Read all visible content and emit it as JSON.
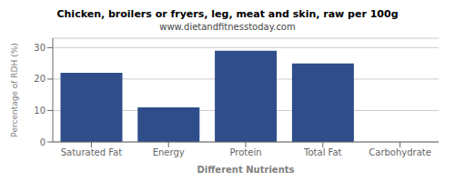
{
  "chart_data": {
    "type": "bar",
    "title": "Chicken, broilers or fryers, leg, meat and skin, raw per 100g",
    "subtitle": "www.dietandfitnesstoday.com",
    "categories": [
      "Saturated Fat",
      "Energy",
      "Protein",
      "Total Fat",
      "Carbohydrate"
    ],
    "values": [
      22,
      11,
      29,
      25,
      0
    ],
    "color": "#2e4d8a",
    "xlabel": "Different Nutrients",
    "ylabel": "Percentage of RDH (%)",
    "ylim": [
      0,
      33
    ],
    "yticks": [
      0,
      10,
      20,
      30
    ],
    "grid": true
  }
}
